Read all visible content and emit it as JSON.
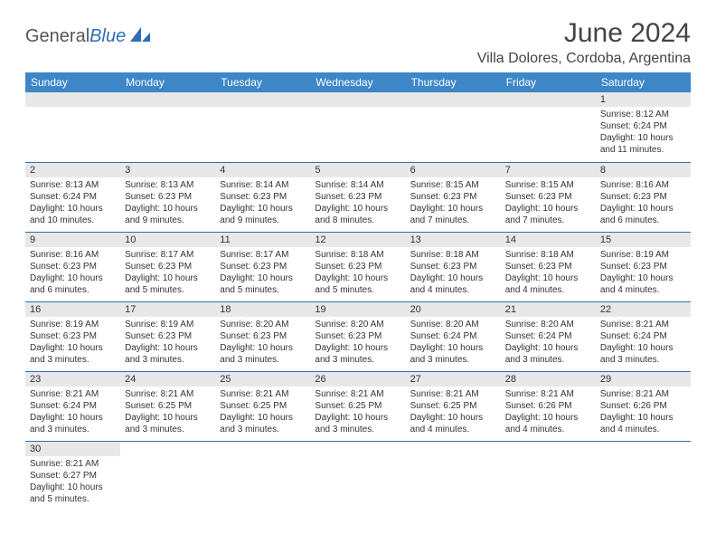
{
  "brand": {
    "part1": "General",
    "part2": "Blue"
  },
  "title": "June 2024",
  "location": "Villa Dolores, Cordoba, Argentina",
  "colors": {
    "header_bg": "#3d87c9",
    "header_fg": "#ffffff",
    "accent": "#2e6fb5",
    "daynum_bg": "#e8e8e8",
    "text": "#333333",
    "page_bg": "#ffffff"
  },
  "dayHeaders": [
    "Sunday",
    "Monday",
    "Tuesday",
    "Wednesday",
    "Thursday",
    "Friday",
    "Saturday"
  ],
  "weeks": [
    [
      null,
      null,
      null,
      null,
      null,
      null,
      {
        "n": "1",
        "sr": "8:12 AM",
        "ss": "6:24 PM",
        "dl": "10 hours and 11 minutes."
      }
    ],
    [
      {
        "n": "2",
        "sr": "8:13 AM",
        "ss": "6:24 PM",
        "dl": "10 hours and 10 minutes."
      },
      {
        "n": "3",
        "sr": "8:13 AM",
        "ss": "6:23 PM",
        "dl": "10 hours and 9 minutes."
      },
      {
        "n": "4",
        "sr": "8:14 AM",
        "ss": "6:23 PM",
        "dl": "10 hours and 9 minutes."
      },
      {
        "n": "5",
        "sr": "8:14 AM",
        "ss": "6:23 PM",
        "dl": "10 hours and 8 minutes."
      },
      {
        "n": "6",
        "sr": "8:15 AM",
        "ss": "6:23 PM",
        "dl": "10 hours and 7 minutes."
      },
      {
        "n": "7",
        "sr": "8:15 AM",
        "ss": "6:23 PM",
        "dl": "10 hours and 7 minutes."
      },
      {
        "n": "8",
        "sr": "8:16 AM",
        "ss": "6:23 PM",
        "dl": "10 hours and 6 minutes."
      }
    ],
    [
      {
        "n": "9",
        "sr": "8:16 AM",
        "ss": "6:23 PM",
        "dl": "10 hours and 6 minutes."
      },
      {
        "n": "10",
        "sr": "8:17 AM",
        "ss": "6:23 PM",
        "dl": "10 hours and 5 minutes."
      },
      {
        "n": "11",
        "sr": "8:17 AM",
        "ss": "6:23 PM",
        "dl": "10 hours and 5 minutes."
      },
      {
        "n": "12",
        "sr": "8:18 AM",
        "ss": "6:23 PM",
        "dl": "10 hours and 5 minutes."
      },
      {
        "n": "13",
        "sr": "8:18 AM",
        "ss": "6:23 PM",
        "dl": "10 hours and 4 minutes."
      },
      {
        "n": "14",
        "sr": "8:18 AM",
        "ss": "6:23 PM",
        "dl": "10 hours and 4 minutes."
      },
      {
        "n": "15",
        "sr": "8:19 AM",
        "ss": "6:23 PM",
        "dl": "10 hours and 4 minutes."
      }
    ],
    [
      {
        "n": "16",
        "sr": "8:19 AM",
        "ss": "6:23 PM",
        "dl": "10 hours and 3 minutes."
      },
      {
        "n": "17",
        "sr": "8:19 AM",
        "ss": "6:23 PM",
        "dl": "10 hours and 3 minutes."
      },
      {
        "n": "18",
        "sr": "8:20 AM",
        "ss": "6:23 PM",
        "dl": "10 hours and 3 minutes."
      },
      {
        "n": "19",
        "sr": "8:20 AM",
        "ss": "6:23 PM",
        "dl": "10 hours and 3 minutes."
      },
      {
        "n": "20",
        "sr": "8:20 AM",
        "ss": "6:24 PM",
        "dl": "10 hours and 3 minutes."
      },
      {
        "n": "21",
        "sr": "8:20 AM",
        "ss": "6:24 PM",
        "dl": "10 hours and 3 minutes."
      },
      {
        "n": "22",
        "sr": "8:21 AM",
        "ss": "6:24 PM",
        "dl": "10 hours and 3 minutes."
      }
    ],
    [
      {
        "n": "23",
        "sr": "8:21 AM",
        "ss": "6:24 PM",
        "dl": "10 hours and 3 minutes."
      },
      {
        "n": "24",
        "sr": "8:21 AM",
        "ss": "6:25 PM",
        "dl": "10 hours and 3 minutes."
      },
      {
        "n": "25",
        "sr": "8:21 AM",
        "ss": "6:25 PM",
        "dl": "10 hours and 3 minutes."
      },
      {
        "n": "26",
        "sr": "8:21 AM",
        "ss": "6:25 PM",
        "dl": "10 hours and 3 minutes."
      },
      {
        "n": "27",
        "sr": "8:21 AM",
        "ss": "6:25 PM",
        "dl": "10 hours and 4 minutes."
      },
      {
        "n": "28",
        "sr": "8:21 AM",
        "ss": "6:26 PM",
        "dl": "10 hours and 4 minutes."
      },
      {
        "n": "29",
        "sr": "8:21 AM",
        "ss": "6:26 PM",
        "dl": "10 hours and 4 minutes."
      }
    ],
    [
      {
        "n": "30",
        "sr": "8:21 AM",
        "ss": "6:27 PM",
        "dl": "10 hours and 5 minutes."
      },
      null,
      null,
      null,
      null,
      null,
      null
    ]
  ],
  "labels": {
    "sunrise": "Sunrise:",
    "sunset": "Sunset:",
    "daylight": "Daylight:"
  }
}
